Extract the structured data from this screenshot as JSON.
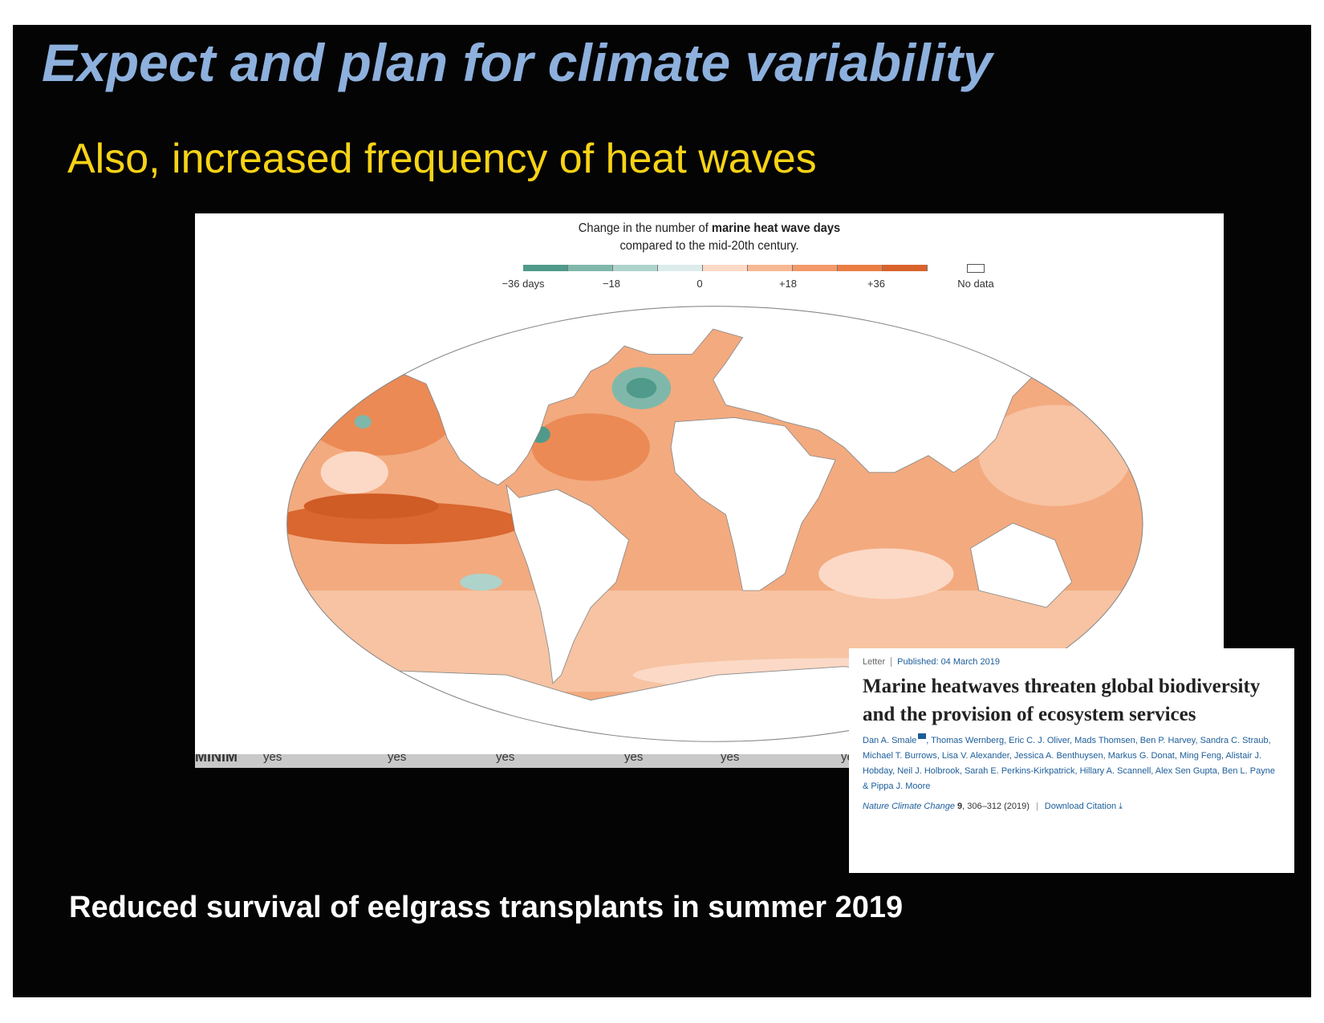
{
  "slide": {
    "title": "Expect and plan for climate variability",
    "subtitle": "Also, increased frequency of heat waves",
    "bottom_text": "Reduced survival of eelgrass transplants in summer 2019"
  },
  "map": {
    "title_prefix": "Change in the number of ",
    "title_bold": "marine heat wave days",
    "title_line2": "compared to the mid-20th century.",
    "legend_ticks": [
      "−36 days",
      "−18",
      "0",
      "+18",
      "+36"
    ],
    "no_data_label": "No data",
    "legend_colors": [
      "#4f9a8a",
      "#7fb8aa",
      "#aed3cb",
      "#dcecea",
      "#fbd9c6",
      "#f7b893",
      "#f29a69",
      "#ea7e45",
      "#d9622b"
    ]
  },
  "strip": {
    "label": "MINIM",
    "cells": [
      "yes",
      "yes",
      "yes",
      "yes",
      "yes",
      "ye"
    ]
  },
  "article": {
    "type": "Letter",
    "published": "Published: 04 March 2019",
    "title": "Marine heatwaves threaten global biodiversity and the provision of ecosystem services",
    "first_author": "Dan A. Smale",
    "other_authors": ", Thomas Wernberg, Eric C. J. Oliver, Mads Thomsen, Ben P. Harvey, Sandra C. Straub, Michael T. Burrows, Lisa V. Alexander, Jessica A. Benthuysen, Markus G. Donat, Ming Feng, Alistair J. Hobday, Neil J. Holbrook, Sarah E. Perkins-Kirkpatrick, Hillary A. Scannell, Alex Sen Gupta, Ben L. Payne & Pippa J. Moore",
    "journal": "Nature Climate Change",
    "volume": "9",
    "pages": ", 306–312 (2019)",
    "separator": "|",
    "download": "Download Citation ⤓"
  }
}
